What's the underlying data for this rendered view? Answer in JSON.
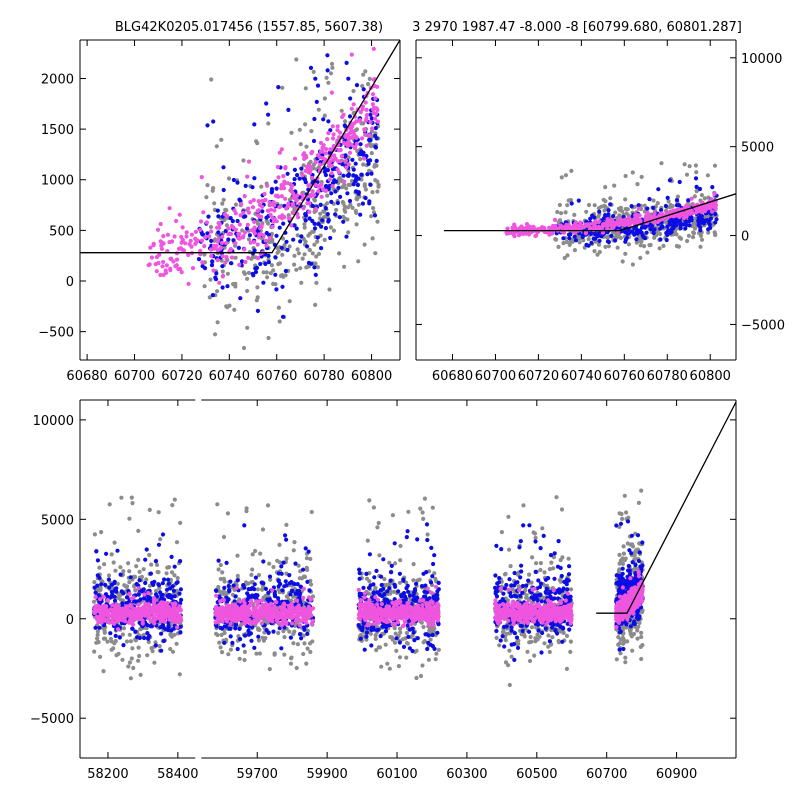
{
  "colors": {
    "gray": "#8c8c8c",
    "blue": "#0c0ce6",
    "magenta": "#ef55df",
    "line": "#000000"
  },
  "chart_data": [
    {
      "id": "top-left",
      "type": "scatter",
      "title": "BLG42K0205.017456 (1557.85, 5607.38)",
      "xlim": [
        60677,
        60812
      ],
      "ylim": [
        -780,
        2380
      ],
      "xticks": [
        60680,
        60700,
        60720,
        60740,
        60760,
        60780,
        60800
      ],
      "yticks": [
        -500,
        0,
        500,
        1000,
        1500,
        2000
      ],
      "ytick_side": "left",
      "x_segments": [
        [
          60677,
          60812
        ]
      ],
      "model_line": [
        [
          60677,
          280
        ],
        [
          60758,
          280
        ],
        [
          60812,
          2380
        ]
      ],
      "series": [
        {
          "name": "gray",
          "x_range": [
            60727,
            60803
          ],
          "center_start": 250,
          "center_end": 1300,
          "spread": 700,
          "outlier": 0.15,
          "count": 430,
          "seed": 11
        },
        {
          "name": "blue",
          "x_range": [
            60727,
            60803
          ],
          "center_start": 350,
          "center_end": 1450,
          "spread": 520,
          "outlier": 0.12,
          "count": 360,
          "seed": 23
        },
        {
          "name": "magenta",
          "x_range": [
            60705,
            60803
          ],
          "center_start": 250,
          "center_end": 1800,
          "spread": 300,
          "outlier": 0.05,
          "count": 430,
          "seed": 37
        }
      ]
    },
    {
      "id": "top-right",
      "type": "scatter",
      "title": "3 2970 1987.47 -8.000 -8 [60799.680, 60801.287]",
      "xlim": [
        60663,
        60812
      ],
      "ylim": [
        -7000,
        11000
      ],
      "xticks": [
        60680,
        60700,
        60720,
        60740,
        60760,
        60780,
        60800
      ],
      "yticks": [
        -5000,
        0,
        5000,
        10000
      ],
      "ytick_side": "right",
      "x_segments": [
        [
          60663,
          60812
        ]
      ],
      "model_line": [
        [
          60676,
          280
        ],
        [
          60758,
          280
        ],
        [
          60812,
          2350
        ]
      ],
      "series": [
        {
          "name": "gray",
          "x_range": [
            60727,
            60803
          ],
          "center_start": 250,
          "center_end": 1300,
          "spread": 1300,
          "outlier": 0.14,
          "count": 430,
          "seed": 41
        },
        {
          "name": "blue",
          "x_range": [
            60727,
            60803
          ],
          "center_start": 350,
          "center_end": 1450,
          "spread": 850,
          "outlier": 0.1,
          "count": 360,
          "seed": 53
        },
        {
          "name": "magenta",
          "x_range": [
            60705,
            60803
          ],
          "center_start": 250,
          "center_end": 1750,
          "spread": 260,
          "outlier": 0.04,
          "count": 430,
          "seed": 67
        }
      ]
    },
    {
      "id": "bottom",
      "type": "scatter",
      "title": "",
      "xlim": [
        58120,
        61070
      ],
      "ylim": [
        -7000,
        11000
      ],
      "xticks": [
        58200,
        58400,
        59700,
        59900,
        60100,
        60300,
        60500,
        60700,
        60900
      ],
      "yticks": [
        -5000,
        0,
        5000,
        10000
      ],
      "ytick_side": "left",
      "x_segments": [
        [
          58120,
          58450
        ],
        [
          59540,
          61070
        ]
      ],
      "model_line": [
        [
          60670,
          280
        ],
        [
          60758,
          280
        ],
        [
          61070,
          10900
        ]
      ],
      "series": [
        {
          "name": "gray",
          "seasons": [
            [
              58160,
              58410
            ],
            [
              59580,
              59860
            ],
            [
              59990,
              60220
            ],
            [
              60380,
              60600
            ],
            [
              60727,
              60803
            ]
          ],
          "center": 400,
          "spread": 2200,
          "outlier": 0.12,
          "count": 1700,
          "seed": 71
        },
        {
          "name": "blue",
          "seasons": [
            [
              58160,
              58410
            ],
            [
              59580,
              59860
            ],
            [
              59990,
              60220
            ],
            [
              60380,
              60600
            ],
            [
              60727,
              60803
            ]
          ],
          "center": 600,
          "spread": 1600,
          "outlier": 0.1,
          "count": 1400,
          "seed": 83
        },
        {
          "name": "magenta",
          "seasons": [
            [
              58160,
              58410
            ],
            [
              59580,
              59860
            ],
            [
              59990,
              60220
            ],
            [
              60380,
              60600
            ],
            [
              60727,
              60803
            ]
          ],
          "center": 300,
          "spread": 520,
          "outlier": 0.05,
          "count": 2000,
          "seed": 97
        }
      ]
    }
  ]
}
